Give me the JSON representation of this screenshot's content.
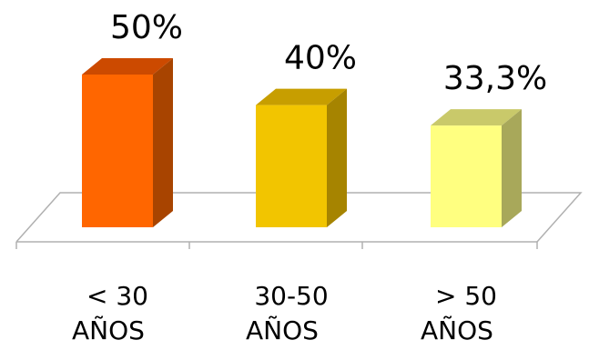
{
  "chart_data": {
    "type": "bar",
    "categories": [
      [
        "< 30",
        "AÑOS"
      ],
      [
        "30-50",
        "AÑOS"
      ],
      [
        "> 50",
        "AÑOS"
      ]
    ],
    "values": [
      50,
      40,
      33.3
    ],
    "data_labels": [
      "50%",
      "40%",
      "33,3%"
    ],
    "ylim": [
      0,
      50
    ],
    "three_d": true,
    "grid": false,
    "legend": "none",
    "colors": {
      "bars": [
        {
          "front": "#FF6600",
          "top": "#CC4A00",
          "side": "#A84400"
        },
        {
          "front": "#F2C500",
          "top": "#C79E00",
          "side": "#A68400"
        },
        {
          "front": "#FFFF80",
          "top": "#C9C96A",
          "side": "#A8A85A"
        }
      ],
      "floor_stroke": "#B0B0B0"
    }
  }
}
